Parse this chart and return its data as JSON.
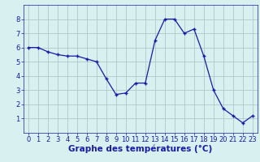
{
  "x": [
    0,
    1,
    2,
    3,
    4,
    5,
    6,
    7,
    8,
    9,
    10,
    11,
    12,
    13,
    14,
    15,
    16,
    17,
    18,
    19,
    20,
    21,
    22,
    23
  ],
  "y": [
    6.0,
    6.0,
    5.7,
    5.5,
    5.4,
    5.4,
    5.2,
    5.0,
    3.8,
    2.7,
    2.8,
    3.5,
    3.5,
    6.5,
    8.0,
    8.0,
    7.0,
    7.3,
    5.4,
    3.0,
    1.7,
    1.2,
    0.7,
    1.2
  ],
  "line_color": "#1a1aaa",
  "marker": "+",
  "marker_size": 3,
  "bg_color": "#d8f0f0",
  "grid_color": "#b0c8c8",
  "xlabel": "Graphe des températures (°C)",
  "xlabel_color": "#1a1aaa",
  "xlabel_fontsize": 7.5,
  "axis_label_color": "#1a1aaa",
  "tick_color": "#1a1aaa",
  "ylim": [
    0,
    9
  ],
  "xlim": [
    -0.5,
    23.5
  ],
  "yticks": [
    1,
    2,
    3,
    4,
    5,
    6,
    7,
    8
  ],
  "xticks": [
    0,
    1,
    2,
    3,
    4,
    5,
    6,
    7,
    8,
    9,
    10,
    11,
    12,
    13,
    14,
    15,
    16,
    17,
    18,
    19,
    20,
    21,
    22,
    23
  ],
  "tick_fontsize": 6.0
}
